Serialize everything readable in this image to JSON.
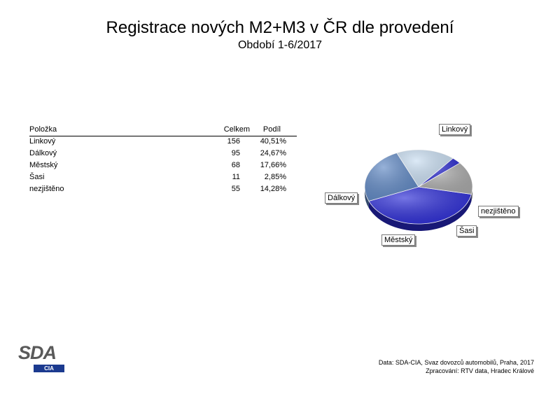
{
  "title": "Registrace nových M2+M3 v ČR dle provedení",
  "subtitle": "Období 1-6/2017",
  "table": {
    "headers": [
      "Položka",
      "Celkem",
      "Podíl"
    ],
    "rows": [
      {
        "item": "Linkový",
        "total": "156",
        "share": "40,51%"
      },
      {
        "item": "Dálkový",
        "total": "95",
        "share": "24,67%"
      },
      {
        "item": "Městský",
        "total": "68",
        "share": "17,66%"
      },
      {
        "item": "Šasi",
        "total": "11",
        "share": "2,85%"
      },
      {
        "item": "nezjištěno",
        "total": "55",
        "share": "14,28%"
      }
    ]
  },
  "chart_data": {
    "type": "pie",
    "slices": [
      {
        "label": "Linkový",
        "value": 156,
        "percent": 40.51,
        "color": "#2b2bd6"
      },
      {
        "label": "Dálkový",
        "value": 95,
        "percent": 24.67,
        "color": "#5f88c4"
      },
      {
        "label": "Městský",
        "value": 68,
        "percent": 17.66,
        "color": "#c9def2"
      },
      {
        "label": "Šasi",
        "value": 11,
        "percent": 2.85,
        "color": "#2a2ad0"
      },
      {
        "label": "nezjištěno",
        "value": 55,
        "percent": 14.28,
        "color": "#a9a9a9"
      }
    ]
  },
  "logo": {
    "main": "SDA",
    "sub": "CIA"
  },
  "credits": {
    "line1": "Data: SDA-CIA, Svaz dovozců automobilů, Praha, 2017",
    "line2": "Zpracování: RTV data, Hradec Králové"
  }
}
